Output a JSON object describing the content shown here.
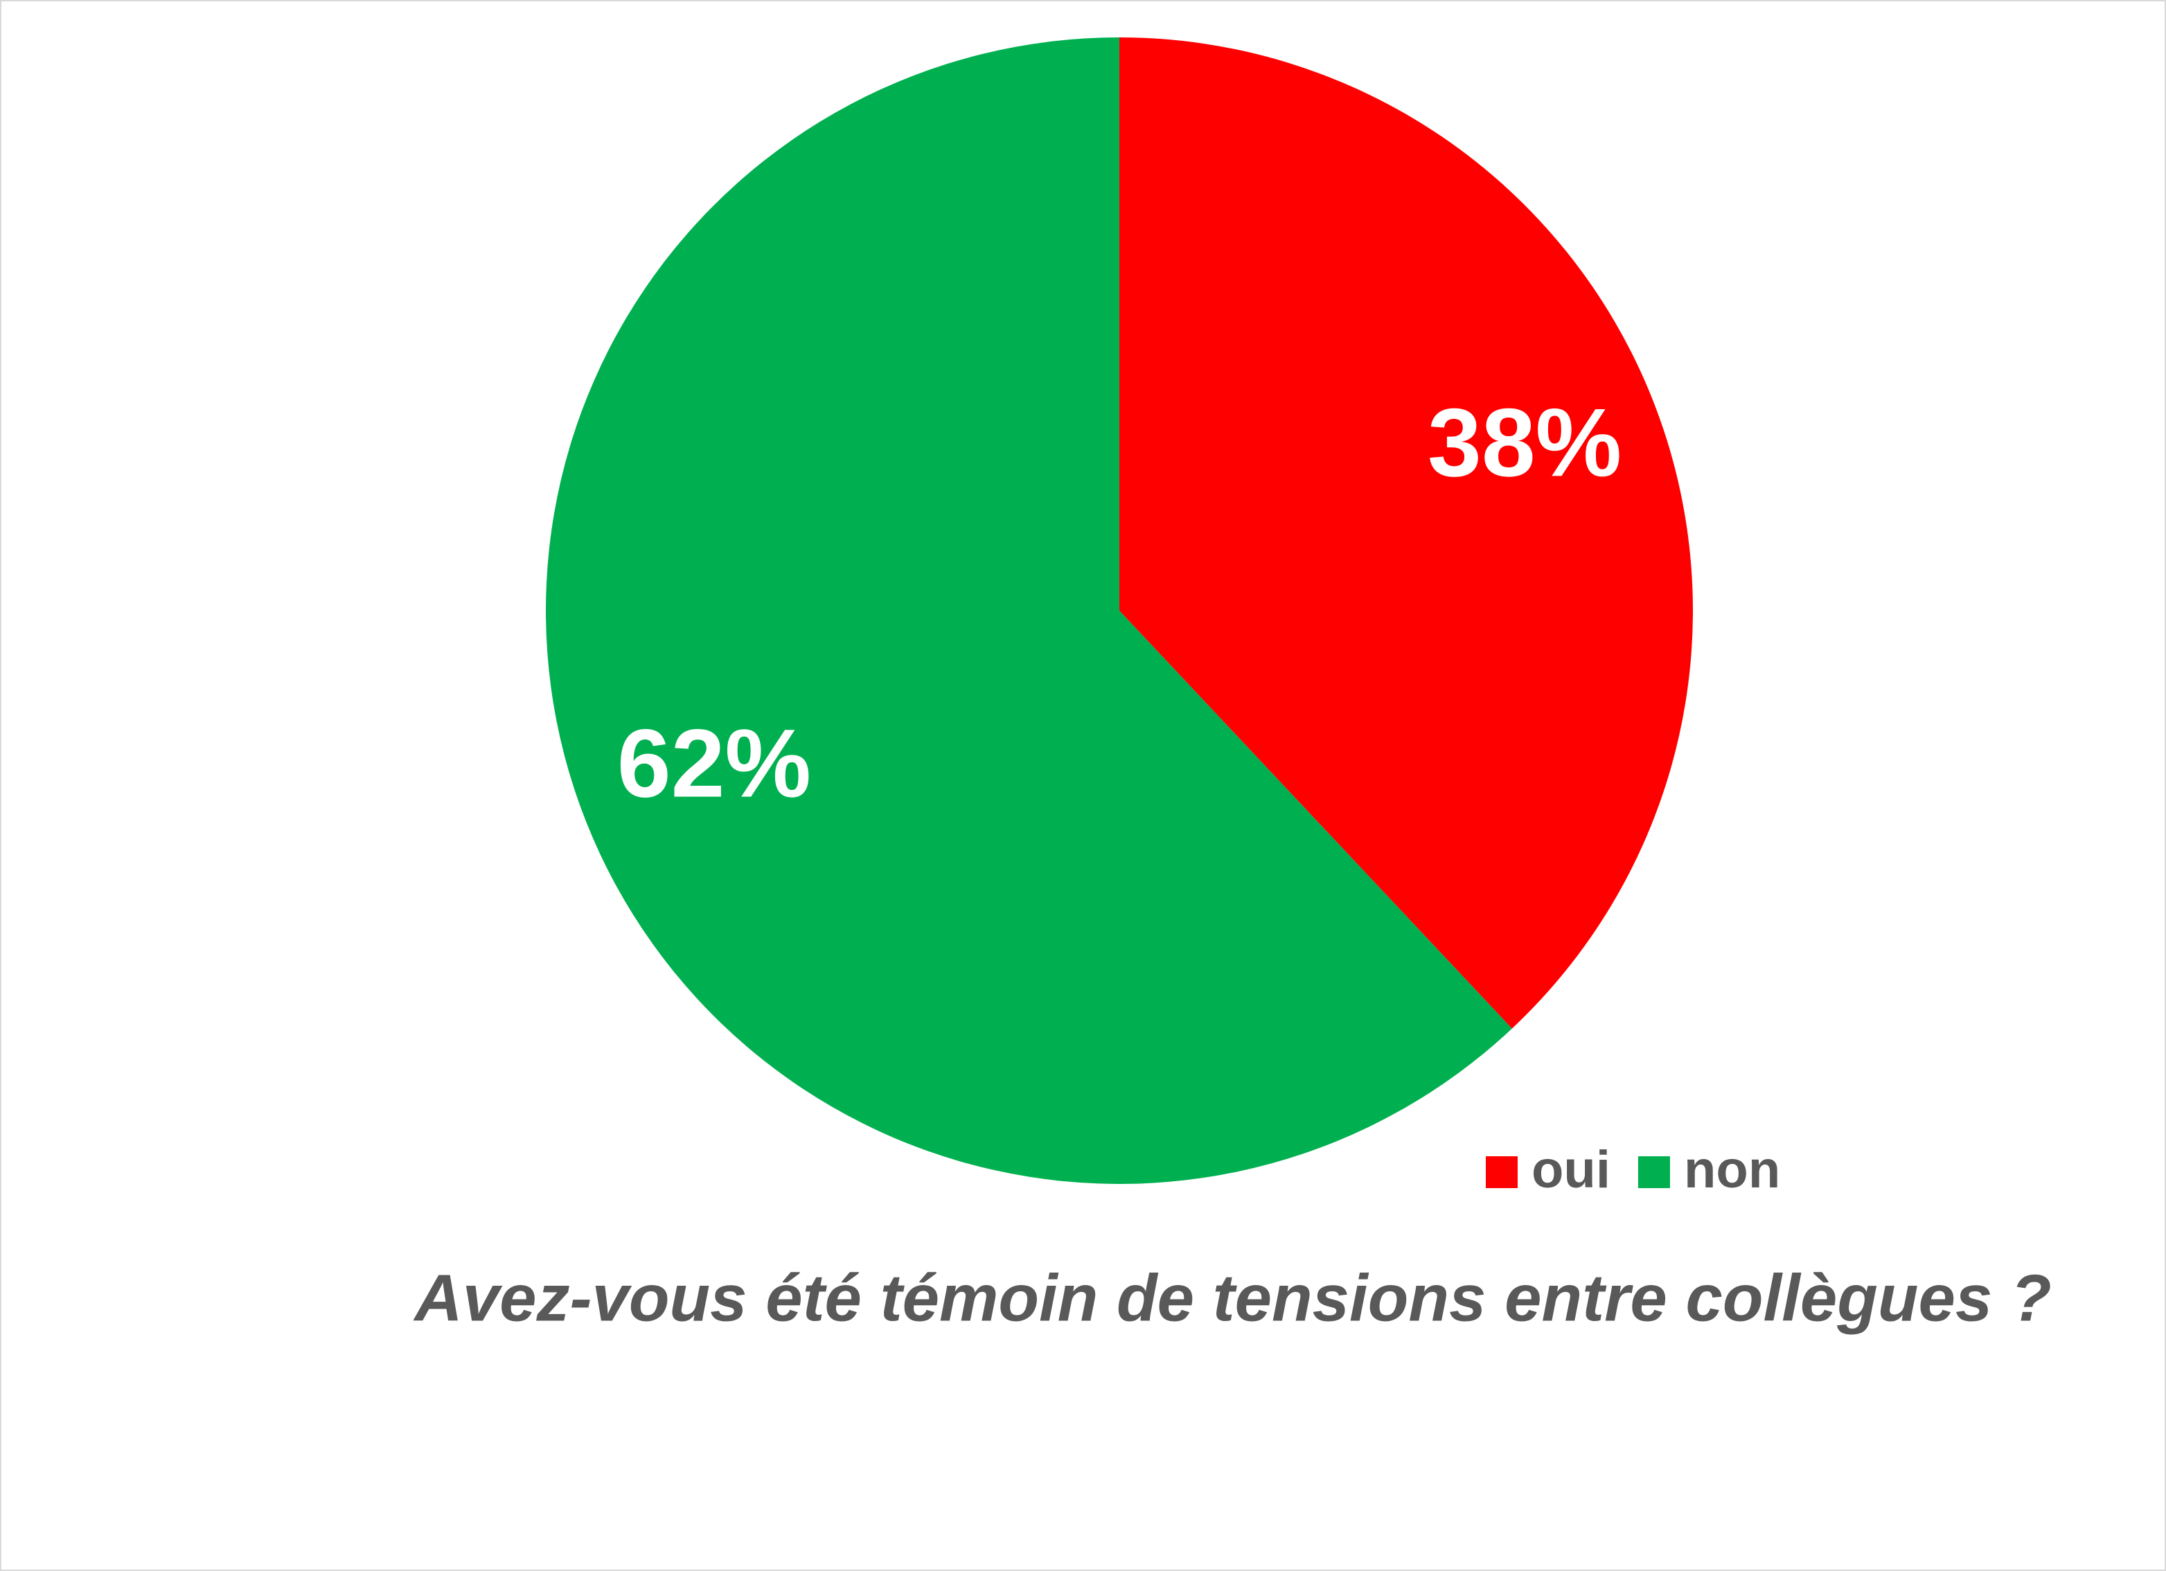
{
  "chart_data": {
    "type": "pie",
    "title": "Avez-vous été témoin de tensions entre collègues ?",
    "categories": [
      "oui",
      "non"
    ],
    "values": [
      38,
      62
    ],
    "value_labels": [
      "38%",
      "62%"
    ],
    "colors": [
      "#ff0000",
      "#00b050"
    ],
    "legend": "bottom-right"
  }
}
